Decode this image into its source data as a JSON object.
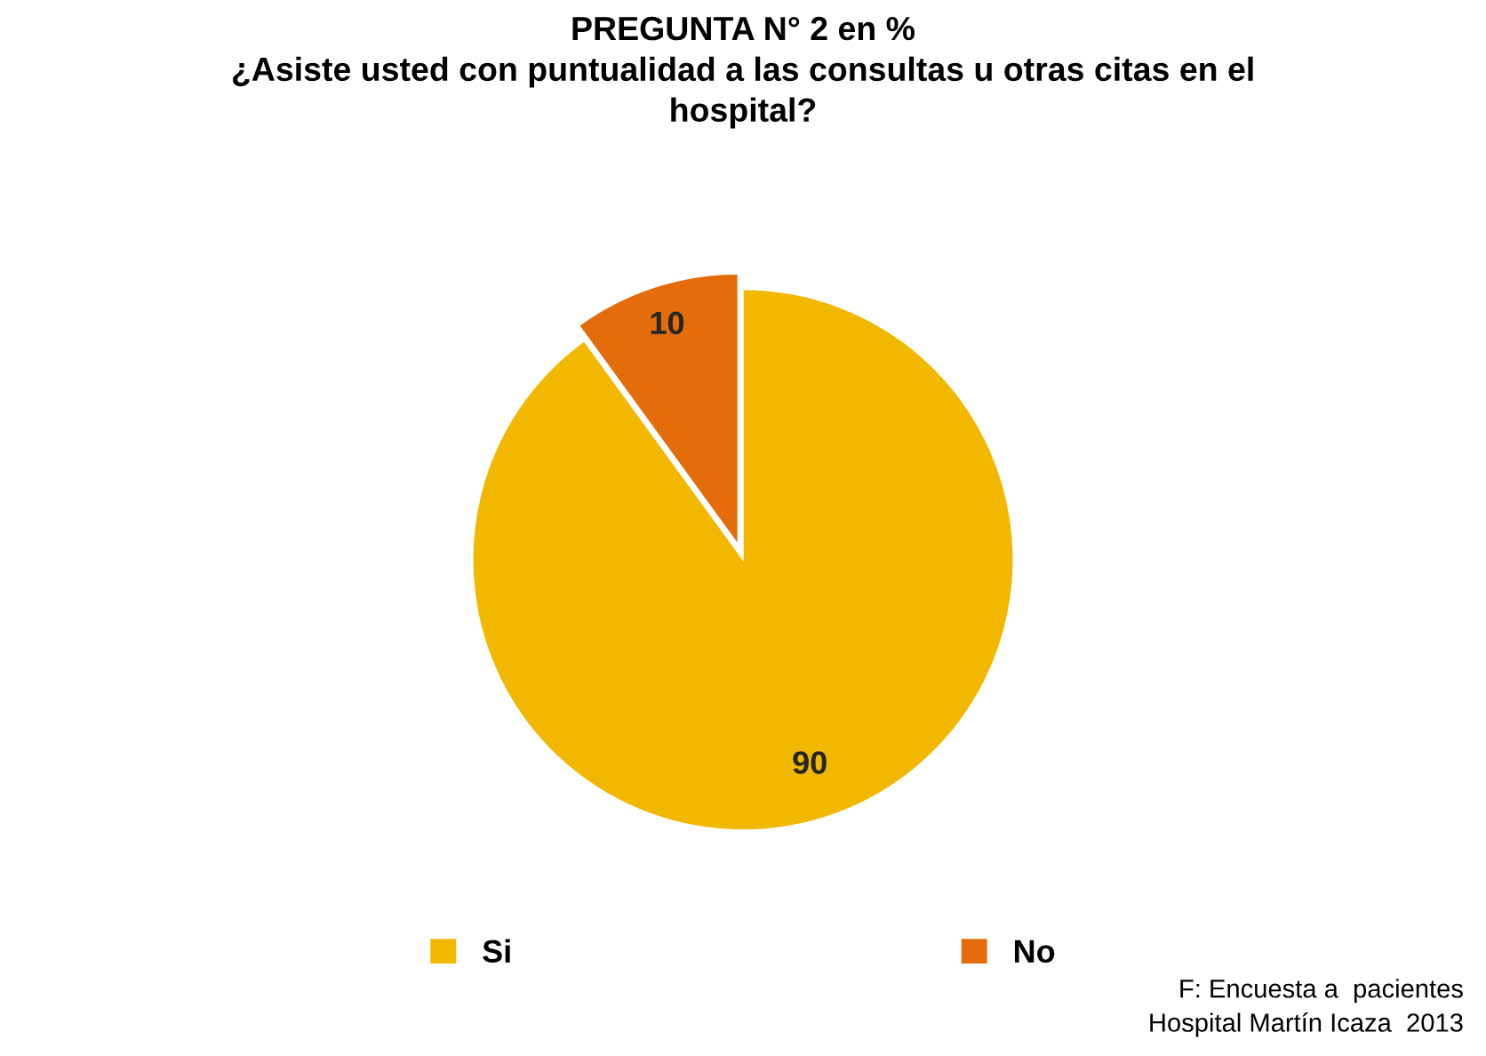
{
  "chart_data": {
    "type": "pie",
    "title": "PREGUNTA N° 2 en %\n¿Asiste usted con puntualidad a las consultas u otras citas en el\nhospital?",
    "categories": [
      "Si",
      "No"
    ],
    "values": [
      90,
      10
    ],
    "colors": [
      "#f2b800",
      "#e46c0a"
    ],
    "data_labels": true,
    "legend": "bottom",
    "annotations": [
      "F: Encuesta a  pacientes\nHospital Martín Icaza  2013"
    ]
  }
}
